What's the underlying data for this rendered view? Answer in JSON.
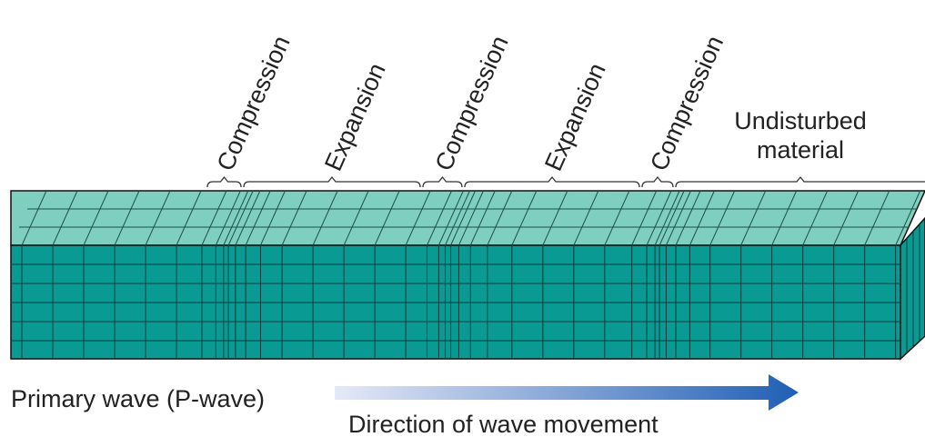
{
  "regions": [
    "Compression",
    "Expansion",
    "Compression",
    "Expansion",
    "Compression"
  ],
  "undisturbed": {
    "lines": [
      "Undisturbed",
      "material"
    ]
  },
  "caption": "Primary wave (P-wave)",
  "arrow_label": "Direction of wave movement"
}
